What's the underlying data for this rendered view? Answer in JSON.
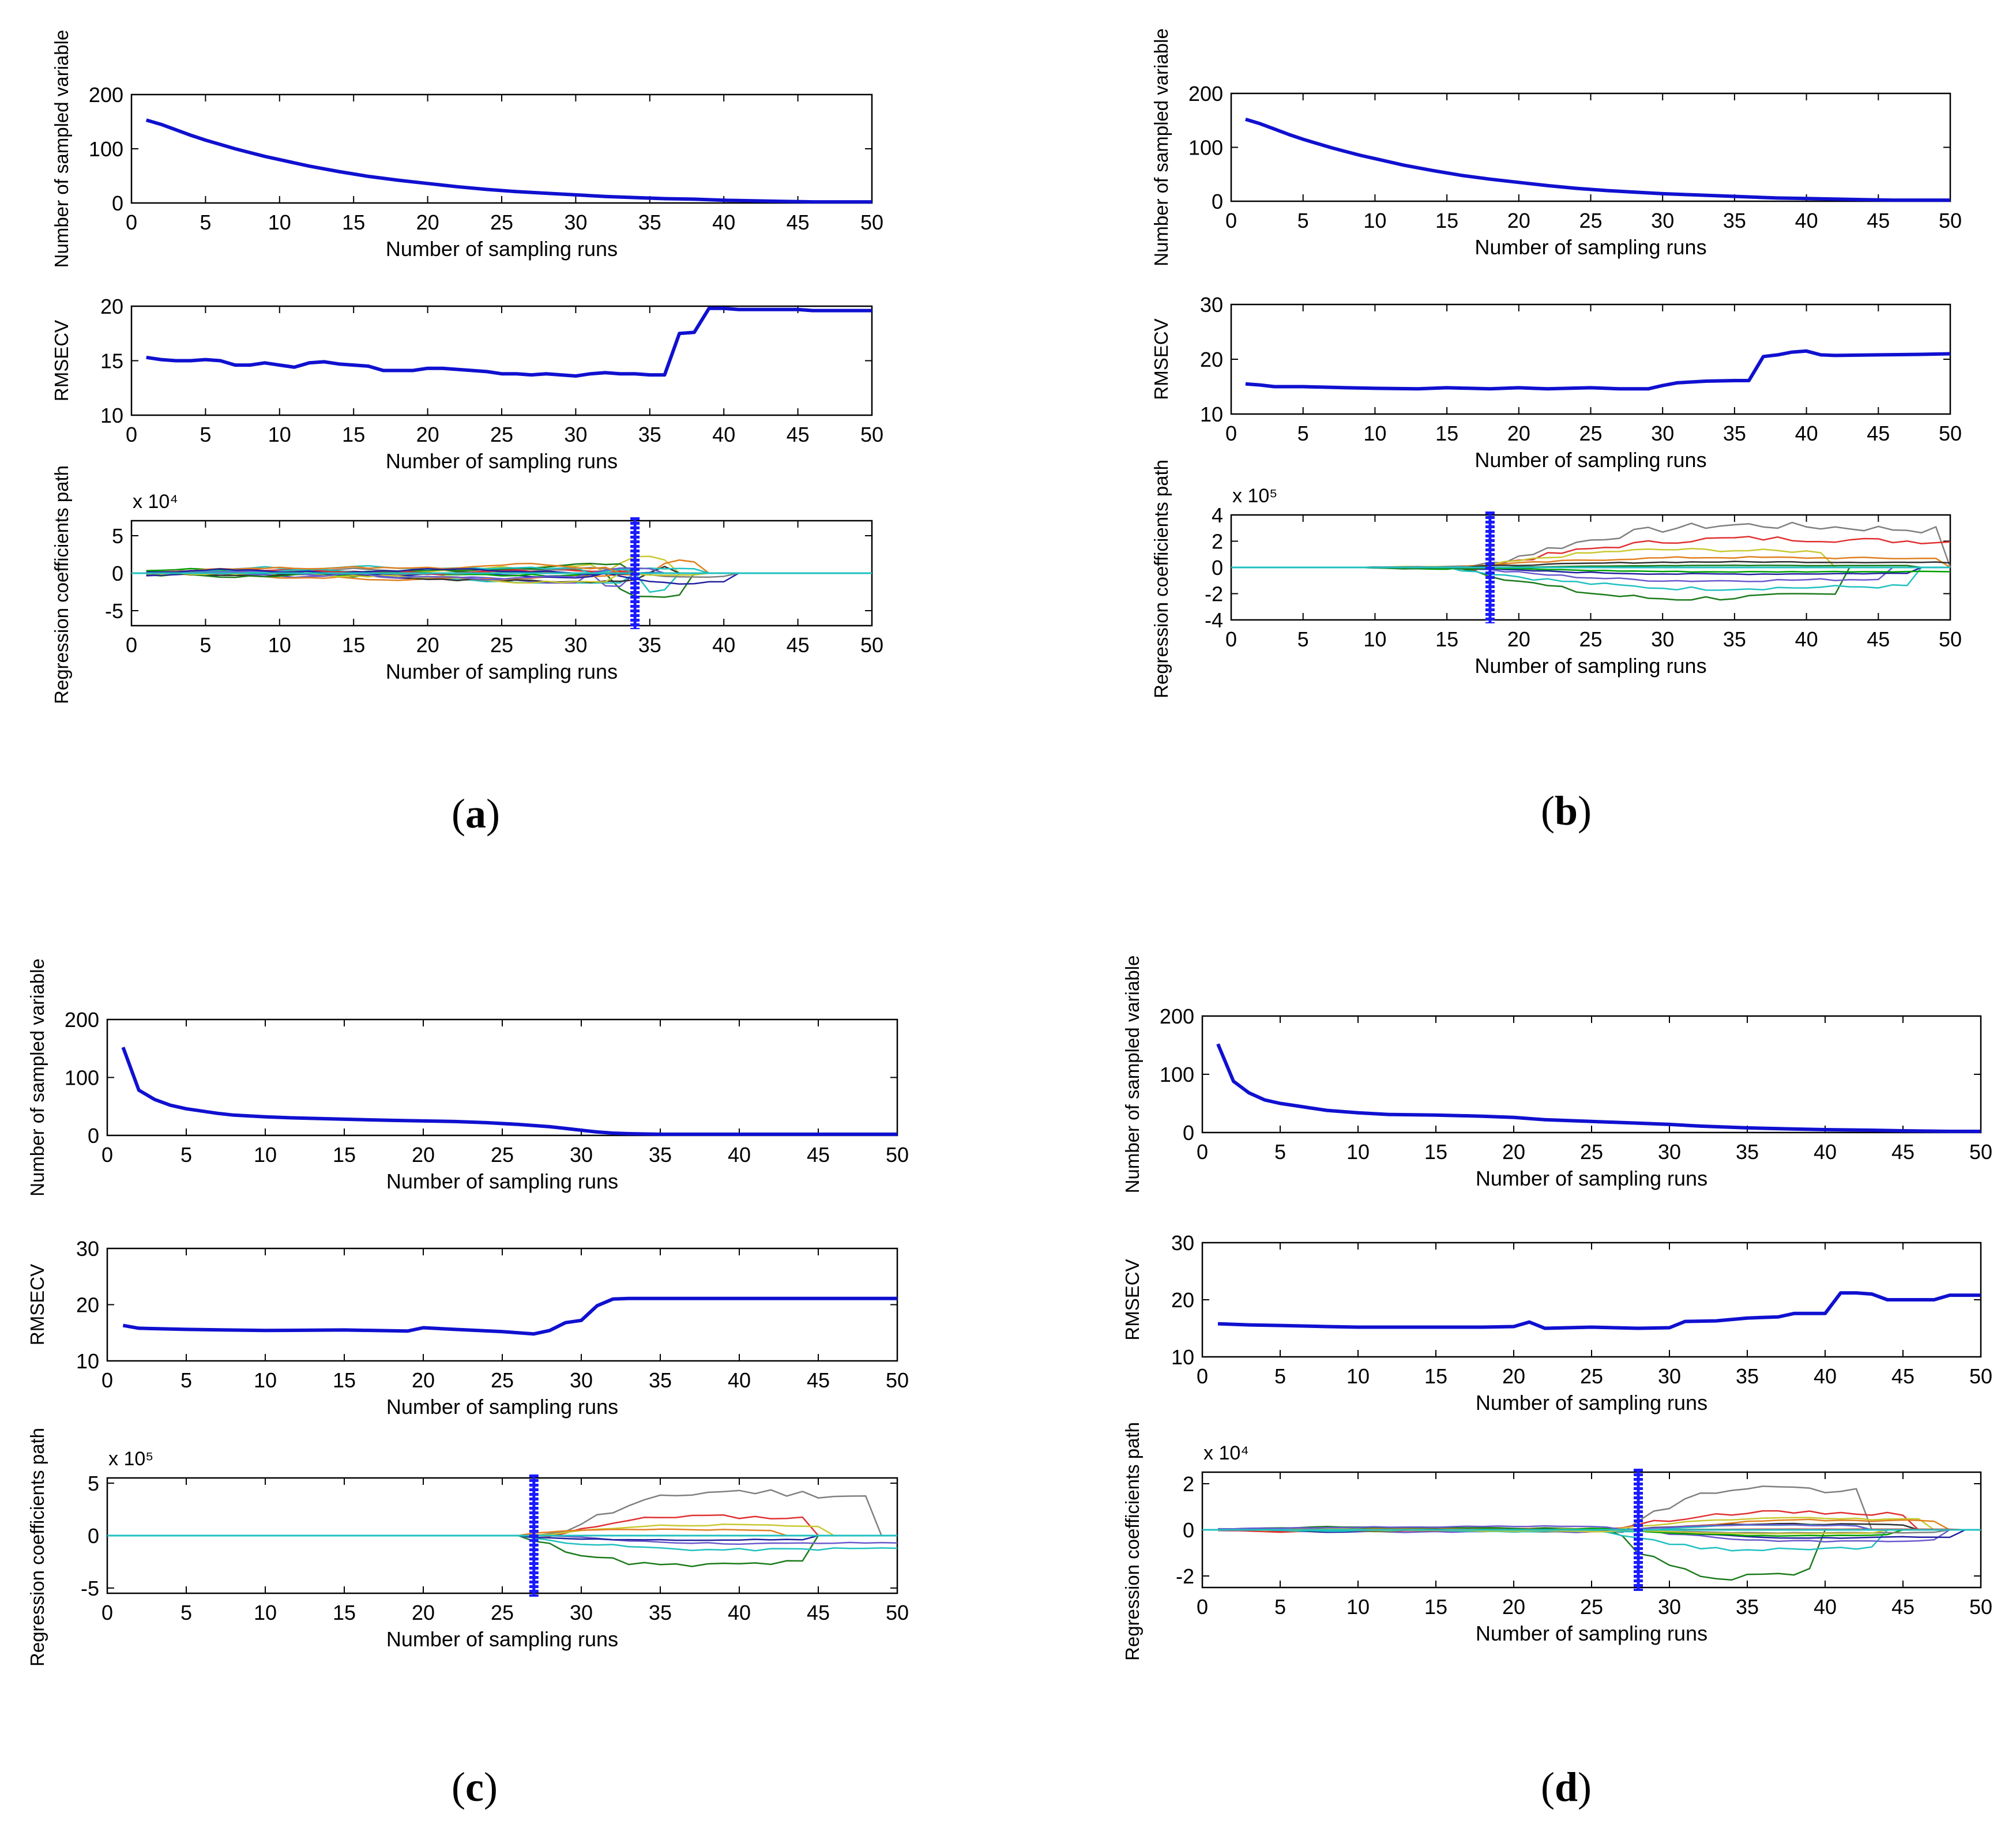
{
  "colors": {
    "main_line": "#1010d0",
    "selection_marker": "#1a1aff",
    "axis": "#000000",
    "coef_palette": [
      "#7f7f7f",
      "#1a7a1a",
      "#e03030",
      "#20c0c0",
      "#c8c830",
      "#6a5acd",
      "#e08020",
      "#2020a0",
      "#303030",
      "#00a000"
    ]
  },
  "panel_labels": [
    {
      "letter": "a"
    },
    {
      "letter": "b"
    },
    {
      "letter": "c"
    },
    {
      "letter": "d"
    }
  ],
  "chart_data": [
    {
      "panel": "a",
      "charts": [
        {
          "type": "line",
          "ylabel": "Number of sampled variable",
          "xlabel": "Number of sampling runs",
          "xlim": [
            0,
            50
          ],
          "ylim": [
            0,
            200
          ],
          "xticks": [
            0,
            5,
            10,
            15,
            20,
            25,
            30,
            35,
            40,
            45,
            50
          ],
          "yticks": [
            0,
            100,
            200
          ],
          "exponent_label": "",
          "x": [
            1,
            2,
            3,
            4,
            5,
            6,
            7,
            8,
            9,
            10,
            12,
            14,
            16,
            18,
            20,
            22,
            24,
            26,
            28,
            30,
            32,
            34,
            36,
            38,
            40,
            42,
            44,
            46,
            48,
            50
          ],
          "values": [
            153,
            145,
            135,
            125,
            116,
            108,
            100,
            93,
            86,
            80,
            68,
            58,
            49,
            42,
            36,
            30,
            25,
            21,
            18,
            15,
            12,
            10,
            8,
            7,
            5,
            4,
            3,
            2,
            2,
            2
          ]
        },
        {
          "type": "line",
          "ylabel": "RMSECV",
          "xlabel": "Number of sampling runs",
          "xlim": [
            0,
            50
          ],
          "ylim": [
            10,
            20
          ],
          "xticks": [
            0,
            5,
            10,
            15,
            20,
            25,
            30,
            35,
            40,
            45,
            50
          ],
          "yticks": [
            10,
            15,
            20
          ],
          "exponent_label": "",
          "x": [
            1,
            2,
            3,
            4,
            5,
            6,
            7,
            8,
            9,
            10,
            11,
            12,
            13,
            14,
            15,
            16,
            17,
            18,
            19,
            20,
            21,
            22,
            23,
            24,
            25,
            26,
            27,
            28,
            29,
            30,
            31,
            32,
            33,
            34,
            35,
            36,
            37,
            38,
            39,
            40,
            41,
            42,
            43,
            44,
            45,
            46,
            47,
            48,
            49,
            50
          ],
          "values": [
            15.3,
            15.1,
            15.0,
            15.0,
            15.1,
            15.0,
            14.6,
            14.6,
            14.8,
            14.6,
            14.4,
            14.8,
            14.9,
            14.7,
            14.6,
            14.5,
            14.1,
            14.1,
            14.1,
            14.3,
            14.3,
            14.2,
            14.1,
            14.0,
            13.8,
            13.8,
            13.7,
            13.8,
            13.7,
            13.6,
            13.8,
            13.9,
            13.8,
            13.8,
            13.7,
            13.7,
            17.5,
            17.6,
            19.8,
            19.8,
            19.7,
            19.7,
            19.7,
            19.7,
            19.7,
            19.6,
            19.6,
            19.6,
            19.6,
            19.6
          ]
        },
        {
          "type": "line",
          "ylabel": "Regression coefficients path",
          "xlabel": "Number of sampling runs",
          "xlim": [
            0,
            50
          ],
          "ylim": [
            -7,
            7
          ],
          "xticks": [
            0,
            5,
            10,
            15,
            20,
            25,
            30,
            35,
            40,
            45,
            50
          ],
          "yticks": [
            -5,
            0,
            5
          ],
          "exponent_label": "x 10⁴",
          "selected_run": 34,
          "coef_seed": 3,
          "coef_lines": 18,
          "coef_start": 1,
          "coef_amp": 1.3,
          "coef_end": 40,
          "coef_peaks": [
            6.8,
            -4.0,
            3.8,
            -3.2,
            2.6,
            -2.2,
            2.0,
            -1.6,
            1.3,
            -1.0
          ]
        }
      ]
    },
    {
      "panel": "b",
      "charts": [
        {
          "type": "line",
          "ylabel": "Number of sampled variable",
          "xlabel": "Number of sampling runs",
          "xlim": [
            0,
            50
          ],
          "ylim": [
            0,
            200
          ],
          "xticks": [
            0,
            5,
            10,
            15,
            20,
            25,
            30,
            35,
            40,
            45,
            50
          ],
          "yticks": [
            0,
            100,
            200
          ],
          "exponent_label": "",
          "x": [
            1,
            2,
            3,
            4,
            5,
            6,
            7,
            8,
            9,
            10,
            12,
            14,
            16,
            18,
            20,
            22,
            24,
            26,
            28,
            30,
            32,
            34,
            36,
            38,
            40,
            42,
            44,
            46,
            48,
            50
          ],
          "values": [
            152,
            144,
            134,
            124,
            115,
            107,
            99,
            92,
            85,
            79,
            67,
            57,
            48,
            41,
            35,
            29,
            24,
            20,
            17,
            14,
            12,
            10,
            8,
            6,
            5,
            4,
            3,
            2,
            2,
            2
          ]
        },
        {
          "type": "line",
          "ylabel": "RMSECV",
          "xlabel": "Number of sampling runs",
          "xlim": [
            0,
            50
          ],
          "ylim": [
            10,
            30
          ],
          "xticks": [
            0,
            5,
            10,
            15,
            20,
            25,
            30,
            35,
            40,
            45,
            50
          ],
          "yticks": [
            10,
            20,
            30
          ],
          "exponent_label": "",
          "x": [
            1,
            2,
            3,
            5,
            8,
            10,
            13,
            15,
            18,
            20,
            22,
            25,
            27,
            29,
            30,
            31,
            33,
            35,
            36,
            37,
            38,
            39,
            40,
            41,
            42,
            45,
            48,
            50
          ],
          "values": [
            15.5,
            15.3,
            15.0,
            15.0,
            14.8,
            14.7,
            14.6,
            14.8,
            14.6,
            14.8,
            14.6,
            14.8,
            14.6,
            14.6,
            15.2,
            15.7,
            16.0,
            16.1,
            16.1,
            20.5,
            20.8,
            21.3,
            21.5,
            20.8,
            20.7,
            20.8,
            20.9,
            21.0
          ]
        },
        {
          "type": "line",
          "ylabel": "Regression coefficients path",
          "xlabel": "Number of sampling runs",
          "xlim": [
            0,
            50
          ],
          "ylim": [
            -4,
            4
          ],
          "xticks": [
            0,
            5,
            10,
            15,
            20,
            25,
            30,
            35,
            40,
            45,
            50
          ],
          "yticks": [
            -4,
            -2,
            0,
            2,
            4
          ],
          "exponent_label": "x 10⁵",
          "selected_run": 18,
          "coef_seed": 7,
          "coef_lines": 12,
          "coef_start": 10,
          "coef_amp": 0.25,
          "coef_end": 50,
          "coef_peaks": [
            3.8,
            -2.8,
            2.6,
            -1.9,
            1.6,
            -1.2,
            0.9,
            -0.6,
            0.5,
            -0.4
          ]
        }
      ]
    },
    {
      "panel": "c",
      "charts": [
        {
          "type": "line",
          "ylabel": "Number of sampled variable",
          "xlabel": "Number of sampling runs",
          "xlim": [
            0,
            50
          ],
          "ylim": [
            0,
            200
          ],
          "xticks": [
            0,
            5,
            10,
            15,
            20,
            25,
            30,
            35,
            40,
            45,
            50
          ],
          "yticks": [
            0,
            100,
            200
          ],
          "exponent_label": "",
          "x": [
            1,
            2,
            3,
            4,
            5,
            6,
            7,
            8,
            10,
            12,
            15,
            18,
            20,
            22,
            24,
            26,
            28,
            29,
            30,
            31,
            32,
            33,
            35,
            40,
            45,
            50
          ],
          "values": [
            152,
            78,
            62,
            52,
            46,
            42,
            38,
            35,
            32,
            30,
            28,
            26,
            25,
            24,
            22,
            19,
            15,
            12,
            9,
            6,
            4,
            3,
            2,
            2,
            2,
            2
          ]
        },
        {
          "type": "line",
          "ylabel": "RMSECV",
          "xlabel": "Number of sampling runs",
          "xlim": [
            0,
            50
          ],
          "ylim": [
            10,
            30
          ],
          "xticks": [
            0,
            5,
            10,
            15,
            20,
            25,
            30,
            35,
            40,
            45,
            50
          ],
          "yticks": [
            10,
            20,
            30
          ],
          "exponent_label": "",
          "x": [
            1,
            2,
            5,
            10,
            15,
            19,
            20,
            22,
            25,
            27,
            28,
            29,
            30,
            31,
            32,
            33,
            35,
            40,
            45,
            50
          ],
          "values": [
            16.3,
            15.8,
            15.6,
            15.4,
            15.5,
            15.3,
            15.9,
            15.6,
            15.2,
            14.8,
            15.4,
            16.8,
            17.2,
            19.8,
            21.0,
            21.1,
            21.1,
            21.1,
            21.1,
            21.1
          ]
        },
        {
          "type": "line",
          "ylabel": "Regression coefficients path",
          "xlabel": "Number of sampling runs",
          "xlim": [
            0,
            50
          ],
          "ylim": [
            -5.5,
            5.5
          ],
          "xticks": [
            0,
            5,
            10,
            15,
            20,
            25,
            30,
            35,
            40,
            45,
            50
          ],
          "yticks": [
            -5,
            0,
            5
          ],
          "exponent_label": "x 10⁵",
          "selected_run": 27,
          "coef_seed": 11,
          "coef_lines": 8,
          "coef_start": 27,
          "coef_amp": 0.1,
          "coef_end": 50,
          "coef_peaks": [
            5.0,
            -3.4,
            2.2,
            -1.6,
            1.2,
            -0.9,
            0.7,
            -0.5,
            0.4,
            -0.3
          ]
        }
      ]
    },
    {
      "panel": "d",
      "charts": [
        {
          "type": "line",
          "ylabel": "Number of sampled variable",
          "xlabel": "Number of sampling runs",
          "xlim": [
            0,
            50
          ],
          "ylim": [
            0,
            200
          ],
          "xticks": [
            0,
            5,
            10,
            15,
            20,
            25,
            30,
            35,
            40,
            45,
            50
          ],
          "yticks": [
            0,
            100,
            200
          ],
          "exponent_label": "",
          "x": [
            1,
            2,
            3,
            4,
            5,
            6,
            7,
            8,
            10,
            12,
            15,
            18,
            20,
            22,
            25,
            28,
            30,
            32,
            35,
            38,
            40,
            43,
            45,
            48,
            50
          ],
          "values": [
            152,
            88,
            68,
            56,
            50,
            46,
            42,
            38,
            34,
            31,
            30,
            28,
            26,
            22,
            19,
            16,
            14,
            11,
            8,
            6,
            5,
            4,
            3,
            2,
            2
          ]
        },
        {
          "type": "line",
          "ylabel": "RMSECV",
          "xlabel": "Number of sampling runs",
          "xlim": [
            0,
            50
          ],
          "ylim": [
            10,
            30
          ],
          "xticks": [
            0,
            5,
            10,
            15,
            20,
            25,
            30,
            35,
            40,
            45,
            50
          ],
          "yticks": [
            10,
            20,
            30
          ],
          "exponent_label": "",
          "x": [
            1,
            3,
            5,
            8,
            10,
            15,
            18,
            20,
            21,
            22,
            25,
            28,
            30,
            31,
            33,
            35,
            37,
            38,
            40,
            41,
            42,
            43,
            44,
            46,
            47,
            48,
            50
          ],
          "values": [
            15.8,
            15.6,
            15.5,
            15.3,
            15.2,
            15.2,
            15.2,
            15.3,
            16.1,
            15.0,
            15.2,
            15.0,
            15.1,
            16.2,
            16.3,
            16.8,
            17.0,
            17.6,
            17.6,
            21.2,
            21.2,
            21.0,
            20.0,
            20.0,
            20.0,
            20.8,
            20.8
          ]
        },
        {
          "type": "line",
          "ylabel": "Regression coefficients path",
          "xlabel": "Number of sampling runs",
          "xlim": [
            0,
            50
          ],
          "ylim": [
            -2.5,
            2.5
          ],
          "xticks": [
            0,
            5,
            10,
            15,
            20,
            25,
            30,
            35,
            40,
            45,
            50
          ],
          "yticks": [
            -2,
            0,
            2
          ],
          "exponent_label": "x 10⁴",
          "selected_run": 28,
          "coef_seed": 19,
          "coef_lines": 16,
          "coef_start": 1,
          "coef_amp": 0.2,
          "coef_end": 48,
          "coef_peaks": [
            2.2,
            -2.4,
            0.9,
            -1.0,
            0.6,
            -0.6,
            0.5,
            -0.4,
            0.3,
            -0.3
          ]
        }
      ]
    }
  ]
}
